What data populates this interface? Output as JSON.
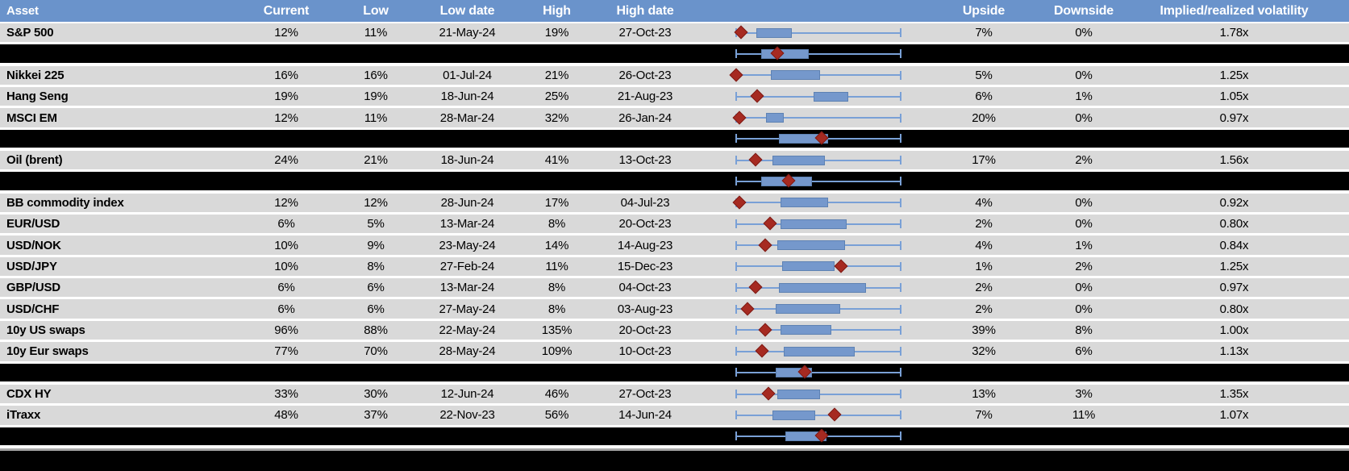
{
  "colors": {
    "header_bg": "#6A93CB",
    "header_text": "#FFFFFF",
    "row_bg": "#D9D9D9",
    "band_bg": "#000000",
    "text": "#000000",
    "box_fill": "#7598CC",
    "box_border": "#5E82B3",
    "whisker": "#79A0D6",
    "diamond_fill": "#A62A21",
    "diamond_border": "#7E1A14",
    "separator": "#A6A6A6"
  },
  "chart_data": {
    "type": "table",
    "title": "Asset volatility ranges: current vs 12-month low/high, with box-and-whisker plot per asset",
    "columns": [
      "Asset",
      "Current",
      "Low",
      "Low date",
      "High",
      "High date",
      "",
      "Upside",
      "Downside",
      "Implied/realized volatility"
    ],
    "boxplot_legend": {
      "whisker": "full low-to-high range (caps at both ends)",
      "box": "interquartile range, normalized 0 = left whisker end, 1 = right whisker end",
      "diamond": "current level marker, normalized 0-1 on same scale"
    },
    "rows": [
      {
        "type": "data",
        "asset": "S&P 500",
        "current": "12%",
        "low": "11%",
        "low_date": "21-May-24",
        "high": "19%",
        "high_date": "27-Oct-23",
        "upside": "7%",
        "downside": "0%",
        "implied_realized": "1.78x",
        "boxplot": {
          "diamond": 0.03,
          "box_lo": 0.12,
          "box_hi": 0.34
        }
      },
      {
        "type": "summary",
        "boxplot": {
          "diamond": 0.25,
          "box_lo": 0.15,
          "box_hi": 0.44
        }
      },
      {
        "type": "data",
        "asset": "Nikkei 225",
        "current": "16%",
        "low": "16%",
        "low_date": "01-Jul-24",
        "high": "21%",
        "high_date": "26-Oct-23",
        "upside": "5%",
        "downside": "0%",
        "implied_realized": "1.25x",
        "boxplot": {
          "diamond": 0.0,
          "box_lo": 0.21,
          "box_hi": 0.51
        }
      },
      {
        "type": "data",
        "asset": "Hang Seng",
        "current": "19%",
        "low": "19%",
        "low_date": "18-Jun-24",
        "high": "25%",
        "high_date": "21-Aug-23",
        "upside": "6%",
        "downside": "1%",
        "implied_realized": "1.05x",
        "boxplot": {
          "diamond": 0.13,
          "box_lo": 0.47,
          "box_hi": 0.68
        }
      },
      {
        "type": "data",
        "asset": "MSCI EM",
        "current": "12%",
        "low": "11%",
        "low_date": "28-Mar-24",
        "high": "32%",
        "high_date": "26-Jan-24",
        "upside": "20%",
        "downside": "0%",
        "implied_realized": "0.97x",
        "boxplot": {
          "diamond": 0.02,
          "box_lo": 0.18,
          "box_hi": 0.29
        }
      },
      {
        "type": "summary",
        "boxplot": {
          "diamond": 0.52,
          "box_lo": 0.26,
          "box_hi": 0.56
        }
      },
      {
        "type": "data",
        "asset": "Oil (brent)",
        "current": "24%",
        "low": "21%",
        "low_date": "18-Jun-24",
        "high": "41%",
        "high_date": "13-Oct-23",
        "upside": "17%",
        "downside": "2%",
        "implied_realized": "1.56x",
        "boxplot": {
          "diamond": 0.12,
          "box_lo": 0.22,
          "box_hi": 0.54
        }
      },
      {
        "type": "summary",
        "boxplot": {
          "diamond": 0.32,
          "box_lo": 0.15,
          "box_hi": 0.46
        }
      },
      {
        "type": "data",
        "asset": "BB commodity index",
        "current": "12%",
        "low": "12%",
        "low_date": "28-Jun-24",
        "high": "17%",
        "high_date": "04-Jul-23",
        "upside": "4%",
        "downside": "0%",
        "implied_realized": "0.92x",
        "boxplot": {
          "diamond": 0.02,
          "box_lo": 0.27,
          "box_hi": 0.56
        }
      },
      {
        "type": "data",
        "asset": "EUR/USD",
        "current": "6%",
        "low": "5%",
        "low_date": "13-Mar-24",
        "high": "8%",
        "high_date": "20-Oct-23",
        "upside": "2%",
        "downside": "0%",
        "implied_realized": "0.80x",
        "boxplot": {
          "diamond": 0.21,
          "box_lo": 0.27,
          "box_hi": 0.67
        }
      },
      {
        "type": "data",
        "asset": "USD/NOK",
        "current": "10%",
        "low": "9%",
        "low_date": "23-May-24",
        "high": "14%",
        "high_date": "14-Aug-23",
        "upside": "4%",
        "downside": "1%",
        "implied_realized": "0.84x",
        "boxplot": {
          "diamond": 0.18,
          "box_lo": 0.25,
          "box_hi": 0.66
        }
      },
      {
        "type": "data",
        "asset": "USD/JPY",
        "current": "10%",
        "low": "8%",
        "low_date": "27-Feb-24",
        "high": "11%",
        "high_date": "15-Dec-23",
        "upside": "1%",
        "downside": "2%",
        "implied_realized": "1.25x",
        "boxplot": {
          "diamond": 0.64,
          "box_lo": 0.28,
          "box_hi": 0.6
        }
      },
      {
        "type": "data",
        "asset": "GBP/USD",
        "current": "6%",
        "low": "6%",
        "low_date": "13-Mar-24",
        "high": "8%",
        "high_date": "04-Oct-23",
        "upside": "2%",
        "downside": "0%",
        "implied_realized": "0.97x",
        "boxplot": {
          "diamond": 0.12,
          "box_lo": 0.26,
          "box_hi": 0.79
        }
      },
      {
        "type": "data",
        "asset": "USD/CHF",
        "current": "6%",
        "low": "6%",
        "low_date": "27-May-24",
        "high": "8%",
        "high_date": "03-Aug-23",
        "upside": "2%",
        "downside": "0%",
        "implied_realized": "0.80x",
        "boxplot": {
          "diamond": 0.07,
          "box_lo": 0.24,
          "box_hi": 0.63
        }
      },
      {
        "type": "data",
        "asset": "10y US swaps",
        "current": "96%",
        "low": "88%",
        "low_date": "22-May-24",
        "high": "135%",
        "high_date": "20-Oct-23",
        "upside": "39%",
        "downside": "8%",
        "implied_realized": "1.00x",
        "boxplot": {
          "diamond": 0.18,
          "box_lo": 0.27,
          "box_hi": 0.58
        }
      },
      {
        "type": "data",
        "asset": "10y Eur swaps",
        "current": "77%",
        "low": "70%",
        "low_date": "28-May-24",
        "high": "109%",
        "high_date": "10-Oct-23",
        "upside": "32%",
        "downside": "6%",
        "implied_realized": "1.13x",
        "boxplot": {
          "diamond": 0.16,
          "box_lo": 0.29,
          "box_hi": 0.72
        }
      },
      {
        "type": "summary",
        "boxplot": {
          "diamond": 0.42,
          "box_lo": 0.24,
          "box_hi": 0.46
        }
      },
      {
        "type": "data",
        "asset": "CDX HY",
        "current": "33%",
        "low": "30%",
        "low_date": "12-Jun-24",
        "high": "46%",
        "high_date": "27-Oct-23",
        "upside": "13%",
        "downside": "3%",
        "implied_realized": "1.35x",
        "boxplot": {
          "diamond": 0.2,
          "box_lo": 0.25,
          "box_hi": 0.51
        }
      },
      {
        "type": "data",
        "asset": "iTraxx",
        "current": "48%",
        "low": "37%",
        "low_date": "22-Nov-23",
        "high": "56%",
        "high_date": "14-Jun-24",
        "upside": "7%",
        "downside": "11%",
        "implied_realized": "1.07x",
        "boxplot": {
          "diamond": 0.6,
          "box_lo": 0.22,
          "box_hi": 0.48
        }
      },
      {
        "type": "summary",
        "boxplot": {
          "diamond": 0.52,
          "box_lo": 0.3,
          "box_hi": 0.55
        }
      }
    ]
  }
}
